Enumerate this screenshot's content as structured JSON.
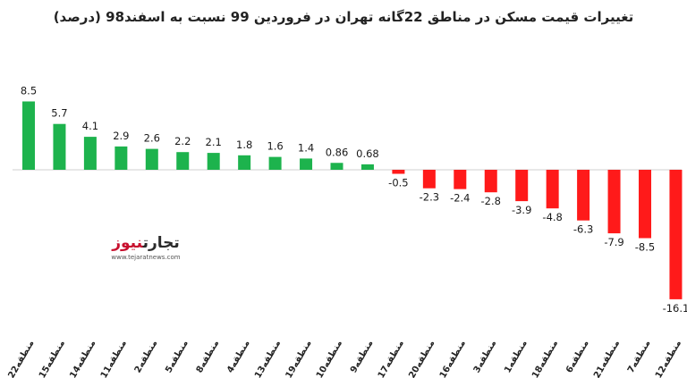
{
  "title": "تغییرات قیمت مسکن در مناطق 22گانه تهران در فروردین 99 نسبت به اسفند98 (درصد)",
  "watermark": {
    "brand_main": "تجارت",
    "brand_accent": "نیوز",
    "url": "www.tejaratnews.com"
  },
  "colors": {
    "positive": "#1db34d",
    "negative": "#ff1a1a",
    "axis": "#cfcfcf"
  },
  "chart_data": {
    "type": "bar",
    "title": "تغییرات قیمت مسکن در مناطق 22گانه تهران در فروردین 99 نسبت به اسفند98 (درصد)",
    "categories": [
      "منطقه22",
      "منطقه15",
      "منطقه14",
      "منطقه11",
      "منطقه2",
      "منطقه5",
      "منطقه8",
      "منطقه4",
      "منطقه13",
      "منطقه19",
      "منطقه10",
      "منطقه9",
      "منطقه17",
      "منطقه20",
      "منطقه16",
      "منطقه3",
      "منطقه1",
      "منطقه18",
      "منطقه6",
      "منطقه21",
      "منطقه7",
      "منطقه12"
    ],
    "values": [
      8.5,
      5.7,
      4.1,
      2.9,
      2.6,
      2.2,
      2.1,
      1.8,
      1.6,
      1.4,
      0.86,
      0.68,
      -0.5,
      -2.3,
      -2.4,
      -2.8,
      -3.9,
      -4.8,
      -6.3,
      -7.9,
      -8.5,
      -16.1
    ],
    "labels": [
      "8.5",
      "5.7",
      "4.1",
      "2.9",
      "2.6",
      "2.2",
      "2.1",
      "1.8",
      "1.6",
      "1.4",
      "0.86",
      "0.68",
      "-0.5",
      "-2.3",
      "-2.4",
      "-2.8",
      "-3.9",
      "-4.8",
      "-6.3",
      "-7.9",
      "-8.5",
      "-16.1"
    ],
    "ylim": [
      -16.1,
      8.5
    ],
    "grid": false,
    "legend": "none"
  }
}
